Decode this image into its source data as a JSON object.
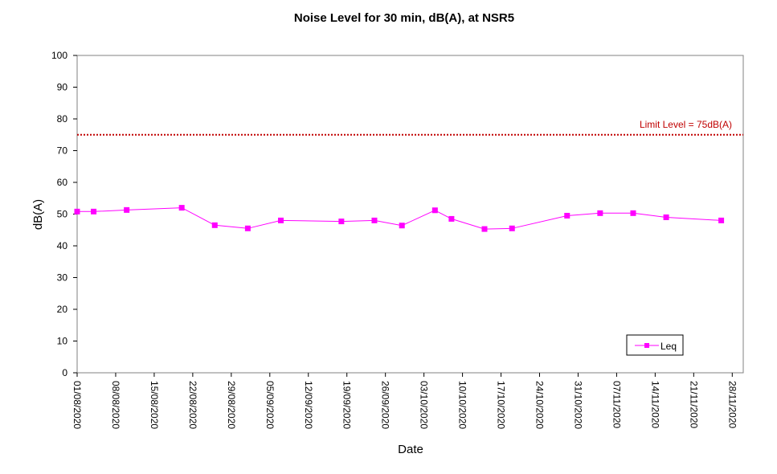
{
  "chart_data": {
    "type": "line",
    "title": "Noise Level for 30 min, dB(A), at NSR5",
    "xlabel": "Date",
    "ylabel": "dB(A)",
    "ylim": [
      0,
      100
    ],
    "y_ticks": [
      0,
      10,
      20,
      30,
      40,
      50,
      60,
      70,
      80,
      90,
      100
    ],
    "xlim": [
      "01/08/2020",
      "30/11/2020"
    ],
    "x_ticks": [
      "01/08/2020",
      "08/08/2020",
      "15/08/2020",
      "22/08/2020",
      "29/08/2020",
      "05/09/2020",
      "12/09/2020",
      "19/09/2020",
      "26/09/2020",
      "03/10/2020",
      "10/10/2020",
      "17/10/2020",
      "24/10/2020",
      "31/10/2020",
      "07/11/2020",
      "14/11/2020",
      "21/11/2020",
      "28/11/2020"
    ],
    "grid": false,
    "legend_position": "bottom-right",
    "series": [
      {
        "name": "Leq",
        "color": "#ff00ff",
        "marker": "square",
        "points": [
          {
            "x": "01/08/2020",
            "y": 50.8
          },
          {
            "x": "04/08/2020",
            "y": 50.8
          },
          {
            "x": "10/08/2020",
            "y": 51.3
          },
          {
            "x": "20/08/2020",
            "y": 52.0
          },
          {
            "x": "26/08/2020",
            "y": 46.5
          },
          {
            "x": "01/09/2020",
            "y": 45.5
          },
          {
            "x": "07/09/2020",
            "y": 48.0
          },
          {
            "x": "18/09/2020",
            "y": 47.7
          },
          {
            "x": "24/09/2020",
            "y": 48.0
          },
          {
            "x": "29/09/2020",
            "y": 46.4
          },
          {
            "x": "05/10/2020",
            "y": 51.2
          },
          {
            "x": "08/10/2020",
            "y": 48.5
          },
          {
            "x": "14/10/2020",
            "y": 45.3
          },
          {
            "x": "19/10/2020",
            "y": 45.5
          },
          {
            "x": "29/10/2020",
            "y": 49.5
          },
          {
            "x": "04/11/2020",
            "y": 50.3
          },
          {
            "x": "10/11/2020",
            "y": 50.3
          },
          {
            "x": "16/11/2020",
            "y": 49.0
          },
          {
            "x": "26/11/2020",
            "y": 48.0
          }
        ]
      }
    ],
    "reference_lines": [
      {
        "y": 75,
        "label": "Limit Level  = 75dB(A)",
        "color": "#c00000",
        "style": "dotted"
      }
    ]
  }
}
